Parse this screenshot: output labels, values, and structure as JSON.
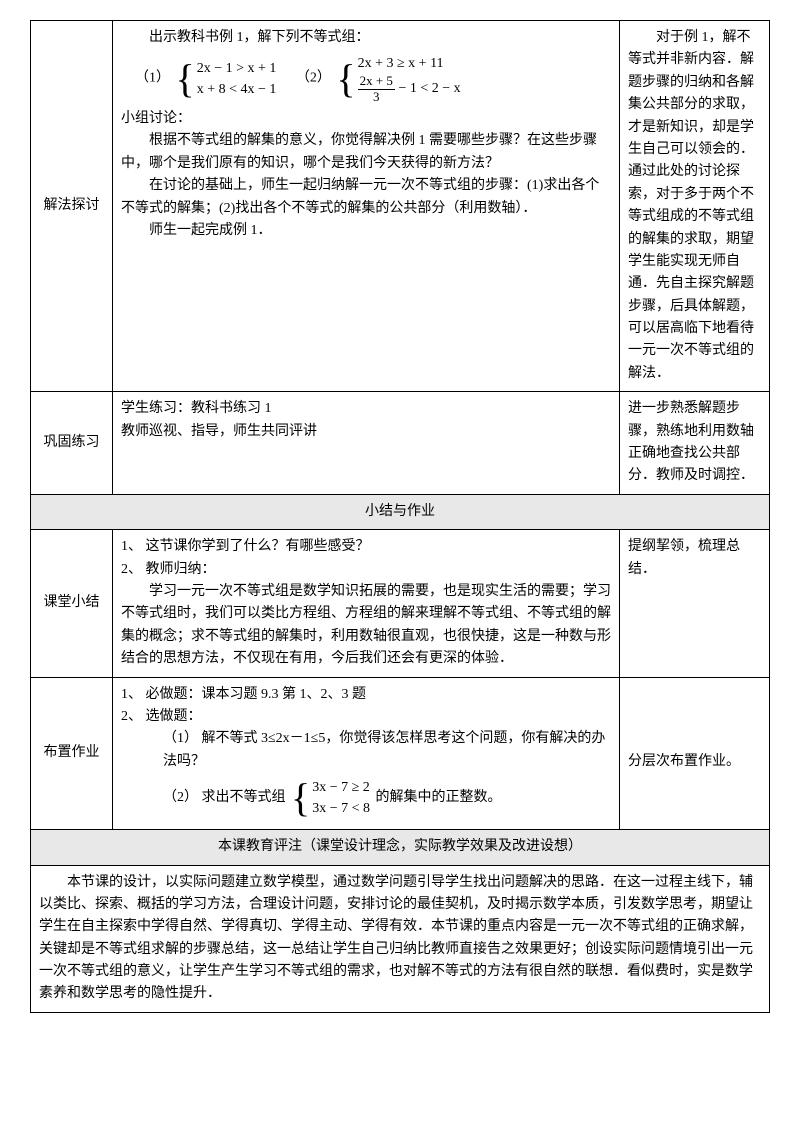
{
  "rows": {
    "r1": {
      "label": "解法探讨",
      "mid_line1": "出示教科书例 1，解下列不等式组：",
      "eq_label1": "（1）",
      "eq1_line1": "2x − 1 > x + 1",
      "eq1_line2": "x + 8 < 4x − 1",
      "eq_label2": "（2）",
      "eq2_line1": "2x + 3 ≥ x + 11",
      "eq2_frac_num": "2x + 5",
      "eq2_frac_den": "3",
      "eq2_line2_rest": " − 1 < 2 − x",
      "mid_line2": "小组讨论：",
      "mid_line3": "根据不等式组的解集的意义，你觉得解决例 1 需要哪些步骤？在这些步骤中，哪个是我们原有的知识，哪个是我们今天获得的新方法？",
      "mid_line4": "在讨论的基础上，师生一起归纳解一元一次不等式组的步骤：(1)求出各个不等式的解集；(2)找出各个不等式的解集的公共部分（利用数轴）．",
      "mid_line5": "师生一起完成例 1．",
      "right": "对于例 1，解不等式并非新内容．解题步骤的归纳和各解集公共部分的求取，才是新知识，却是学生自己可以领会的．通过此处的讨论探索，对于多于两个不等式组成的不等式组的解集的求取，期望学生能实现无师自通．先自主探究解题步骤，后具体解题，可以居高临下地看待一元一次不等式组的解法．"
    },
    "r2": {
      "label": "巩固练习",
      "mid_line1": "学生练习：教科书练习 1",
      "mid_line2": "教师巡视、指导，师生共同评讲",
      "right": "进一步熟悉解题步骤，熟练地利用数轴正确地查找公共部分．教师及时调控．"
    },
    "header1": "小结与作业",
    "r3": {
      "label": "课堂小结",
      "mid_line1": "1、 这节课你学到了什么？有哪些感受？",
      "mid_line2": "2、 教师归纳：",
      "mid_line3": "学习一元一次不等式组是数学知识拓展的需要，也是现实生活的需要；学习不等式组时，我们可以类比方程组、方程组的解来理解不等式组、不等式组的解集的概念；求不等式组的解集时，利用数轴很直观，也很快捷，这是一种数与形结合的思想方法，不仅现在有用，今后我们还会有更深的体验．",
      "right": "提纲挈领，梳理总结．"
    },
    "r4": {
      "label": "布置作业",
      "mid_line1": "1、 必做题：课本习题 9.3 第 1、2、3 题",
      "mid_line2": "2、 选做题：",
      "mid_line3": "（1）  解不等式 3≤2x－1≤5，你觉得该怎样思考这个问题，你有解决的办法吗？",
      "mid_line4_pre": "（2）  求出不等式组",
      "eq_line1": "3x − 7 ≥ 2",
      "eq_line2": "3x − 7 < 8",
      "mid_line4_post": "的解集中的正整数。",
      "right": "分层次布置作业。"
    },
    "header2": "本课教育评注（课堂设计理念，实际教学效果及改进设想）",
    "footer": "本节课的设计，以实际问题建立数学模型，通过数学问题引导学生找出问题解决的思路．在这一过程主线下，辅以类比、探索、概括的学习方法，合理设计问题，安排讨论的最佳契机，及时揭示数学本质，引发数学思考，期望让学生在自主探索中学得自然、学得真切、学得主动、学得有效．本节课的重点内容是一元一次不等式组的正确求解，关键却是不等式组求解的步骤总结，这一总结让学生自己归纳比教师直接告之效果更好；创设实际问题情境引出一元一次不等式组的意义，让学生产生学习不等式组的需求，也对解不等式的方法有很自然的联想．看似费时，实是数学素养和数学思考的隐性提升．"
  }
}
